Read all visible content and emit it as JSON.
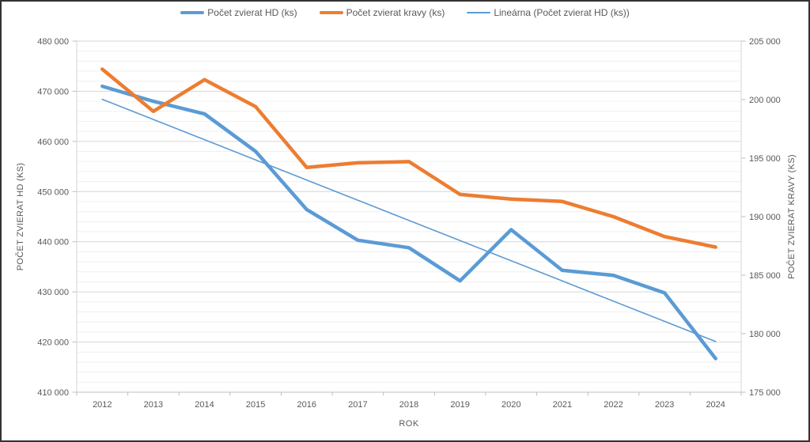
{
  "window": {
    "background": "#ffffff",
    "border_color": "#333333",
    "text_color": "#595959"
  },
  "legend": [
    {
      "label": "Počet zvierat HD (ks)",
      "color": "#5B9BD5",
      "style": "thick"
    },
    {
      "label": "Počet zvierat kravy (ks)",
      "color": "#ED7D31",
      "style": "thick"
    },
    {
      "label": "Lineárna (Počet zvierat HD (ks))",
      "color": "#5B9BD5",
      "style": "thin"
    }
  ],
  "chart_data": {
    "type": "line",
    "title": "",
    "legend_position": "top",
    "categories": [
      "2012",
      "2013",
      "2014",
      "2015",
      "2016",
      "2017",
      "2018",
      "2019",
      "2020",
      "2021",
      "2022",
      "2023",
      "2024"
    ],
    "series": [
      {
        "name": "Počet zvierat HD (ks)",
        "axis": "left",
        "color": "#5B9BD5",
        "stroke_width": 4.5,
        "trendline": false,
        "values": [
          471000,
          468000,
          465500,
          458000,
          446400,
          440300,
          438800,
          432200,
          442400,
          434300,
          433300,
          429800,
          416700
        ]
      },
      {
        "name": "Počet zvierat kravy (ks)",
        "axis": "right",
        "color": "#ED7D31",
        "stroke_width": 4.5,
        "trendline": false,
        "values": [
          202600,
          199000,
          201700,
          199400,
          194200,
          194600,
          194700,
          191900,
          191500,
          191300,
          190000,
          188300,
          187400
        ]
      },
      {
        "name": "Lineárna (Počet zvierat HD (ks))",
        "axis": "left",
        "color": "#5B9BD5",
        "stroke_width": 1.6,
        "trendline": true,
        "values": [
          468400,
          464375,
          460350,
          456325,
          452300,
          448275,
          444250,
          440225,
          436200,
          432175,
          428150,
          424125,
          420100
        ]
      }
    ],
    "left_axis": {
      "title": "POČET ZVIERAT HD (KS)",
      "min": 410000,
      "max": 480000,
      "major": 10000,
      "minor": 2000,
      "tick_labels": [
        "410 000",
        "420 000",
        "430 000",
        "440 000",
        "450 000",
        "460 000",
        "470 000",
        "480 000"
      ]
    },
    "right_axis": {
      "title": "POČET ZVIERAT KRAVY (KS)",
      "min": 175000,
      "max": 205000,
      "major": 5000,
      "tick_labels": [
        "175 000",
        "180 000",
        "185 000",
        "190 000",
        "195 000",
        "200 000",
        "205 000"
      ]
    },
    "x_axis": {
      "title": "ROK"
    },
    "grid": {
      "horizontal_major": true,
      "horizontal_minor": true,
      "vertical": false
    },
    "colors": {
      "minor_gridline": "#F0F0F0",
      "major_gridline": "#D6D6D6",
      "axis_line": "#BFBFBF"
    }
  }
}
